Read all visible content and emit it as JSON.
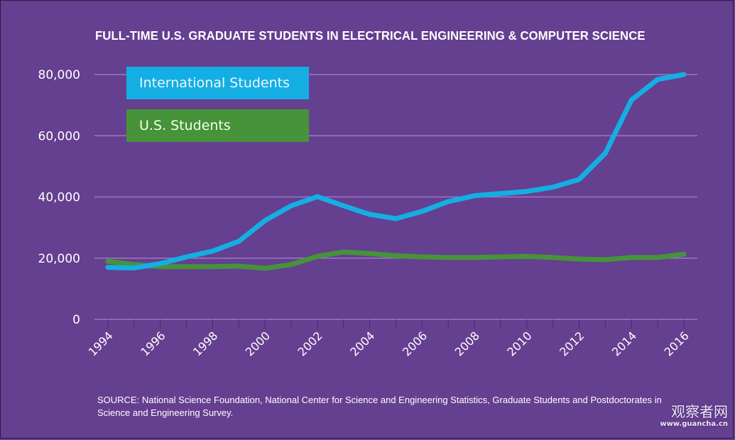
{
  "chart_data": {
    "type": "line",
    "title": "FULL-TIME U.S. GRADUATE STUDENTS IN ELECTRICAL ENGINEERING & COMPUTER SCIENCE",
    "xlabel": "",
    "ylabel": "",
    "x": [
      1994,
      1995,
      1996,
      1997,
      1998,
      1999,
      2000,
      2001,
      2002,
      2003,
      2004,
      2005,
      2006,
      2007,
      2008,
      2009,
      2010,
      2011,
      2012,
      2013,
      2014,
      2015,
      2016
    ],
    "x_tick_labels": [
      "1994",
      "1996",
      "1998",
      "2000",
      "2002",
      "2004",
      "2006",
      "2008",
      "2010",
      "2012",
      "2014",
      "2016"
    ],
    "y_tick_values": [
      0,
      20000,
      40000,
      60000,
      80000
    ],
    "y_tick_labels": [
      "0",
      "20,000",
      "40,000",
      "60,000",
      "80,000"
    ],
    "ylim": [
      0,
      80000
    ],
    "xlim": [
      1994,
      2016
    ],
    "grid": "horizontal",
    "legend_position": "top-left",
    "series": [
      {
        "name": "International Students",
        "color": "#15aee3",
        "values": [
          17000,
          16800,
          18200,
          20400,
          22300,
          25500,
          32300,
          37100,
          40100,
          37100,
          34300,
          32900,
          35300,
          38500,
          40400,
          41100,
          41800,
          43200,
          45700,
          54300,
          71700,
          78400,
          80000
        ]
      },
      {
        "name": "U.S. Students",
        "color": "#46933a",
        "values": [
          19000,
          17900,
          17200,
          17200,
          17200,
          17400,
          16700,
          17900,
          20600,
          22000,
          21500,
          20800,
          20400,
          20200,
          20200,
          20400,
          20600,
          20200,
          19700,
          19500,
          20200,
          20200,
          21300
        ]
      }
    ]
  },
  "colors": {
    "background": "#653f90",
    "gridline": "#9b78c0",
    "international": "#15aee3",
    "us": "#46933a"
  },
  "source": "SOURCE: National Science Foundation, National Center for Science and Engineering Statistics, Graduate Students and Postdoctorates in Science and Engineering Survey.",
  "watermark": {
    "name": "观察者网",
    "url": "www.guancha.cn"
  }
}
